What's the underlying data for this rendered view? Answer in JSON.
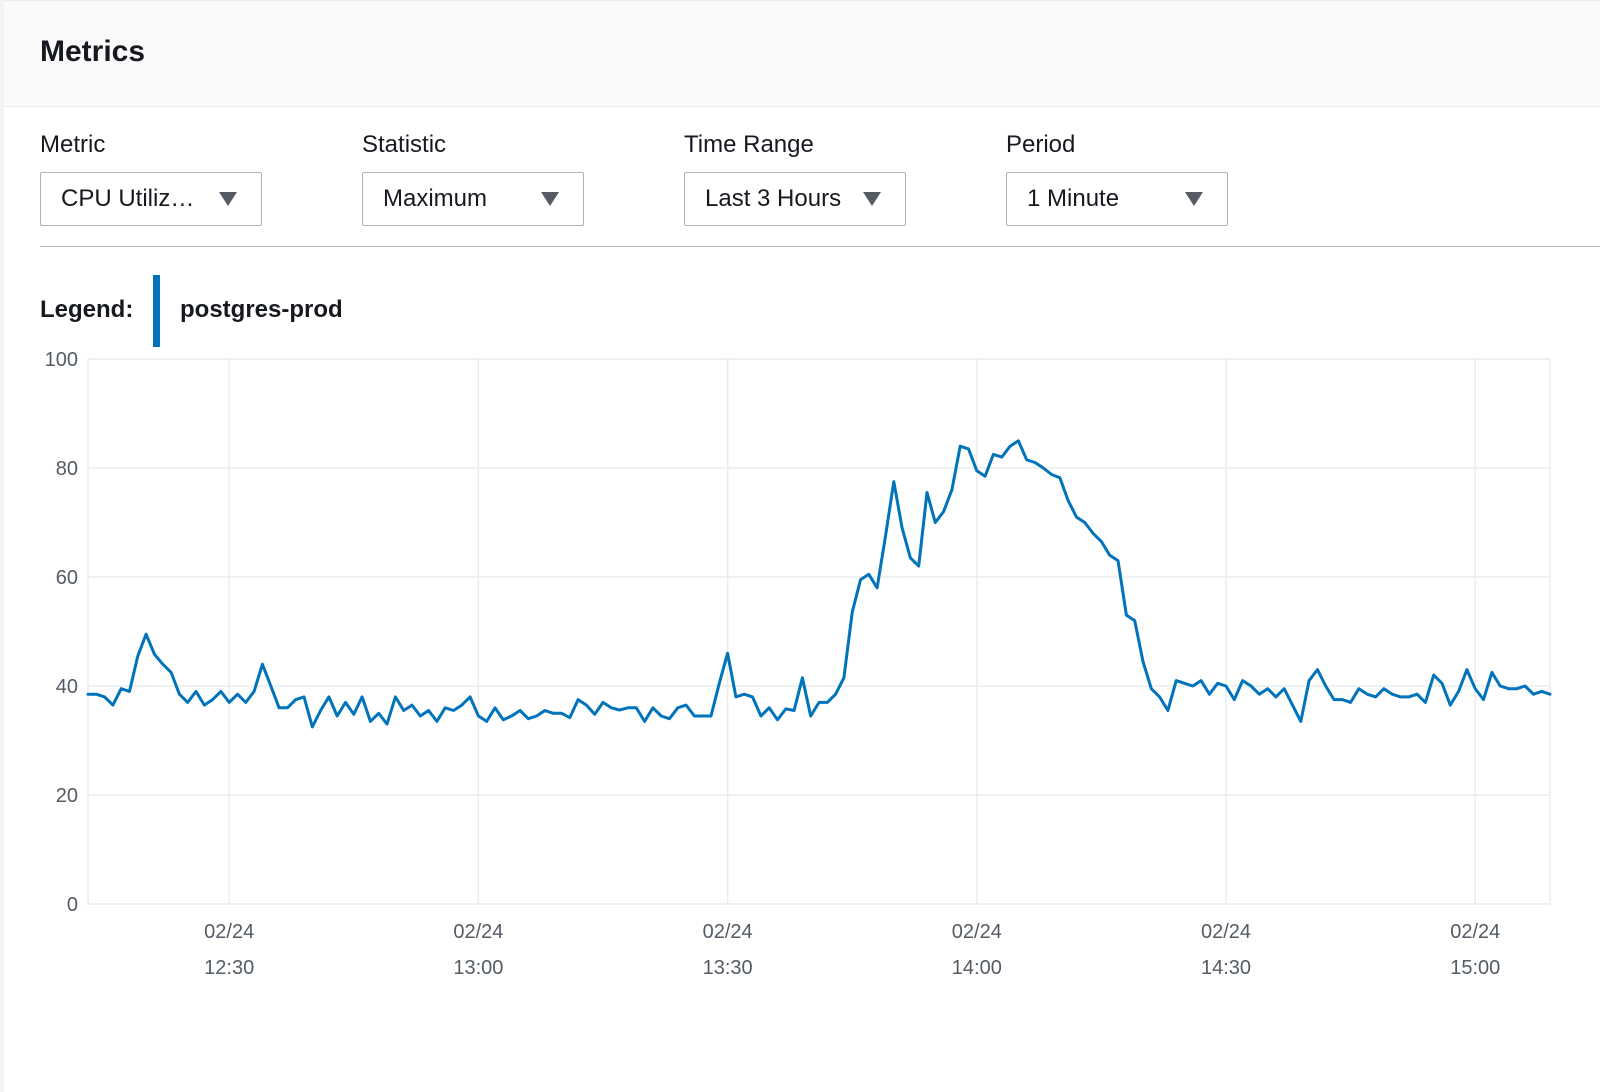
{
  "panel": {
    "title": "Metrics"
  },
  "controls": [
    {
      "label": "Metric",
      "value": "CPU Utiliz…"
    },
    {
      "label": "Statistic",
      "value": "Maximum"
    },
    {
      "label": "Time Range",
      "value": "Last 3 Hours"
    },
    {
      "label": "Period",
      "value": "1 Minute"
    }
  ],
  "legend": {
    "label": "Legend:",
    "series_color": "#0073bb"
  },
  "chart_data": {
    "type": "line",
    "title": "",
    "xlabel": "",
    "ylabel": "",
    "ylim": [
      0,
      100
    ],
    "yticks": [
      0,
      20,
      40,
      60,
      80,
      100
    ],
    "x_start": "12:13",
    "x_end": "15:09",
    "xticks": [
      {
        "time": "12:30",
        "date": "02/24"
      },
      {
        "time": "13:00",
        "date": "02/24"
      },
      {
        "time": "13:30",
        "date": "02/24"
      },
      {
        "time": "14:00",
        "date": "02/24"
      },
      {
        "time": "14:30",
        "date": "02/24"
      },
      {
        "time": "15:00",
        "date": "02/24"
      }
    ],
    "grid": true,
    "legend_position": "top-left",
    "series": [
      {
        "name": "postgres-prod",
        "color": "#0073bb",
        "time_start": "12:13",
        "interval": "1 Minute",
        "values": [
          38.5,
          38.5,
          38,
          36.5,
          39.5,
          39,
          45.5,
          49.5,
          45.8,
          44,
          42.5,
          38.5,
          37,
          39,
          36.5,
          37.5,
          39,
          37,
          38.5,
          37,
          39,
          44,
          40,
          36,
          36,
          37.5,
          38,
          32.5,
          35.5,
          38,
          34.5,
          37,
          34.8,
          38,
          33.5,
          35,
          33,
          38,
          35.5,
          36.5,
          34.5,
          35.5,
          33.5,
          36,
          35.5,
          36.5,
          38,
          34.5,
          33.5,
          36,
          33.8,
          34.5,
          35.5,
          34,
          34.5,
          35.5,
          35,
          35,
          34.2,
          37.5,
          36.5,
          34.8,
          37,
          36,
          35.6,
          36,
          36,
          33.5,
          36,
          34.5,
          34,
          36,
          36.5,
          34.5,
          34.5,
          34.5,
          40.5,
          46,
          38,
          38.5,
          38,
          34.5,
          36,
          33.8,
          35.8,
          35.5,
          41.5,
          34.5,
          37,
          37,
          38.5,
          41.5,
          53.5,
          59.5,
          60.5,
          58,
          67.5,
          77.5,
          69,
          63.5,
          62,
          75.5,
          70,
          72,
          76,
          84,
          83.5,
          79.5,
          78.5,
          82.5,
          82,
          84,
          85,
          81.5,
          81,
          80,
          78.8,
          78.2,
          74,
          71,
          70,
          68,
          66.5,
          64,
          63,
          53,
          52,
          44.5,
          39.5,
          38,
          35.5,
          41,
          40.5,
          40,
          41,
          38.5,
          40.5,
          40,
          37.5,
          41,
          40,
          38.5,
          39.5,
          38,
          39.5,
          36.5,
          33.5,
          41,
          43,
          40,
          37.5,
          37.5,
          37,
          39.5,
          38.5,
          38,
          39.5,
          38.5,
          38,
          38,
          38.5,
          37,
          42,
          40.5,
          36.5,
          39,
          43,
          39.5,
          37.5,
          42.5,
          40,
          39.5,
          39.5,
          40,
          38.5,
          39,
          38.5
        ]
      }
    ]
  }
}
